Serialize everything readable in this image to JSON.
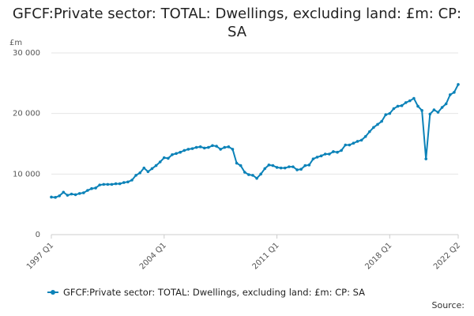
{
  "title": "GFCF:Private sector: TOTAL: Dwellings, excluding land: £m: CP: SA",
  "source_label": "Source:",
  "colors": {
    "series": "#0b82b8",
    "grid": "#e6e6e6",
    "axis": "#cccccc"
  },
  "chart_data": {
    "type": "line",
    "title": "GFCF:Private sector: TOTAL: Dwellings, excluding land: £m: CP: SA",
    "ylabel": "£m",
    "ylim": [
      0,
      30000
    ],
    "yticks": [
      0,
      10000,
      20000,
      30000
    ],
    "ytick_labels": [
      "0",
      "10 000",
      "20 000",
      "30 000"
    ],
    "xtick_labels": [
      "1997 Q1",
      "2004 Q1",
      "2011 Q1",
      "2018 Q1",
      "2022 Q2"
    ],
    "xtick_indices": [
      0,
      28,
      56,
      84,
      101
    ],
    "grid": true,
    "legend": "bottom",
    "categories": [
      "1997 Q1",
      "1997 Q2",
      "1997 Q3",
      "1997 Q4",
      "1998 Q1",
      "1998 Q2",
      "1998 Q3",
      "1998 Q4",
      "1999 Q1",
      "1999 Q2",
      "1999 Q3",
      "1999 Q4",
      "2000 Q1",
      "2000 Q2",
      "2000 Q3",
      "2000 Q4",
      "2001 Q1",
      "2001 Q2",
      "2001 Q3",
      "2001 Q4",
      "2002 Q1",
      "2002 Q2",
      "2002 Q3",
      "2002 Q4",
      "2003 Q1",
      "2003 Q2",
      "2003 Q3",
      "2003 Q4",
      "2004 Q1",
      "2004 Q2",
      "2004 Q3",
      "2004 Q4",
      "2005 Q1",
      "2005 Q2",
      "2005 Q3",
      "2005 Q4",
      "2006 Q1",
      "2006 Q2",
      "2006 Q3",
      "2006 Q4",
      "2007 Q1",
      "2007 Q2",
      "2007 Q3",
      "2007 Q4",
      "2008 Q1",
      "2008 Q2",
      "2008 Q3",
      "2008 Q4",
      "2009 Q1",
      "2009 Q2",
      "2009 Q3",
      "2009 Q4",
      "2010 Q1",
      "2010 Q2",
      "2010 Q3",
      "2010 Q4",
      "2011 Q1",
      "2011 Q2",
      "2011 Q3",
      "2011 Q4",
      "2012 Q1",
      "2012 Q2",
      "2012 Q3",
      "2012 Q4",
      "2013 Q1",
      "2013 Q2",
      "2013 Q3",
      "2013 Q4",
      "2014 Q1",
      "2014 Q2",
      "2014 Q3",
      "2014 Q4",
      "2015 Q1",
      "2015 Q2",
      "2015 Q3",
      "2015 Q4",
      "2016 Q1",
      "2016 Q2",
      "2016 Q3",
      "2016 Q4",
      "2017 Q1",
      "2017 Q2",
      "2017 Q3",
      "2017 Q4",
      "2018 Q1",
      "2018 Q2",
      "2018 Q3",
      "2018 Q4",
      "2019 Q1",
      "2019 Q2",
      "2019 Q3",
      "2019 Q4",
      "2020 Q1",
      "2020 Q2",
      "2020 Q3",
      "2020 Q4",
      "2021 Q1",
      "2021 Q2",
      "2021 Q3",
      "2021 Q4",
      "2022 Q1",
      "2022 Q2"
    ],
    "series": [
      {
        "name": "GFCF:Private sector: TOTAL: Dwellings, excluding land: £m: CP: SA",
        "values": [
          6200,
          6150,
          6400,
          7000,
          6500,
          6700,
          6600,
          6800,
          6900,
          7300,
          7600,
          7700,
          8200,
          8300,
          8300,
          8300,
          8400,
          8400,
          8600,
          8700,
          9000,
          9800,
          10200,
          11000,
          10400,
          10900,
          11400,
          12000,
          12700,
          12600,
          13200,
          13400,
          13600,
          13900,
          14100,
          14200,
          14400,
          14500,
          14300,
          14400,
          14700,
          14600,
          14100,
          14400,
          14500,
          14100,
          11800,
          11400,
          10300,
          9900,
          9800,
          9300,
          10000,
          10900,
          11500,
          11400,
          11100,
          11000,
          11000,
          11200,
          11200,
          10700,
          10800,
          11400,
          11500,
          12500,
          12800,
          13000,
          13300,
          13300,
          13700,
          13600,
          13900,
          14800,
          14800,
          15100,
          15400,
          15600,
          16200,
          17000,
          17700,
          18200,
          18700,
          19800,
          20000,
          20800,
          21200,
          21300,
          21800,
          22100,
          22500,
          21200,
          20500,
          12500,
          19900,
          20600,
          20200,
          21000,
          21600,
          23100,
          23500,
          24800
        ]
      }
    ]
  }
}
